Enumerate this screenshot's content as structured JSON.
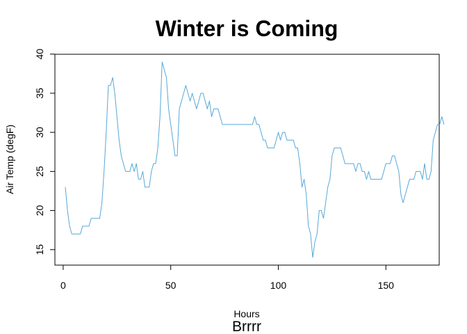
{
  "chart_data": {
    "type": "line",
    "title": "Winter is Coming",
    "subtitle": "Brrrr",
    "xlabel": "Hours",
    "ylabel": "Air Temp (degF)",
    "xlim": [
      1,
      168
    ],
    "ylim": [
      14,
      39
    ],
    "x_ticks": [
      0,
      50,
      100,
      150
    ],
    "y_ticks": [
      15,
      20,
      25,
      30,
      35,
      40
    ],
    "grid": false,
    "line_color": "#56a8d8",
    "series": [
      {
        "values": [
          23,
          20,
          18,
          17,
          17,
          17,
          17,
          17,
          18,
          18,
          18,
          18,
          19,
          19,
          19,
          19,
          19,
          21,
          25,
          30,
          36,
          36,
          37,
          35,
          32,
          29,
          27,
          26,
          25,
          25,
          25,
          26,
          25,
          26,
          24,
          24,
          25,
          23,
          23,
          23,
          25,
          26,
          26,
          28,
          32,
          39,
          38,
          37,
          33,
          31,
          29,
          27,
          27,
          33,
          34,
          35,
          36,
          35,
          34,
          35,
          34,
          33,
          34,
          35,
          35,
          34,
          33,
          34,
          32,
          33,
          33,
          33,
          32,
          31,
          31,
          31,
          31,
          31,
          31,
          31,
          31,
          31,
          31,
          31,
          31,
          31,
          31,
          31,
          32,
          31,
          31,
          30,
          29,
          29,
          28,
          28,
          28,
          28,
          29,
          30,
          29,
          30,
          30,
          29,
          29,
          29,
          29,
          28,
          28,
          26,
          23,
          24,
          22,
          18,
          17,
          14,
          16,
          17,
          20,
          20,
          19,
          21,
          23,
          24,
          27,
          28,
          28,
          28,
          28,
          27,
          26,
          26,
          26,
          26,
          26,
          25,
          26,
          26,
          25,
          25,
          24,
          25,
          24,
          24,
          24,
          24,
          24,
          24,
          25,
          26,
          26,
          26,
          27,
          27,
          26,
          25,
          22,
          21,
          22,
          23,
          24,
          24,
          24,
          25,
          25,
          25,
          24,
          26,
          24,
          24,
          25,
          29,
          30,
          31,
          31,
          32,
          31
        ]
      }
    ]
  }
}
